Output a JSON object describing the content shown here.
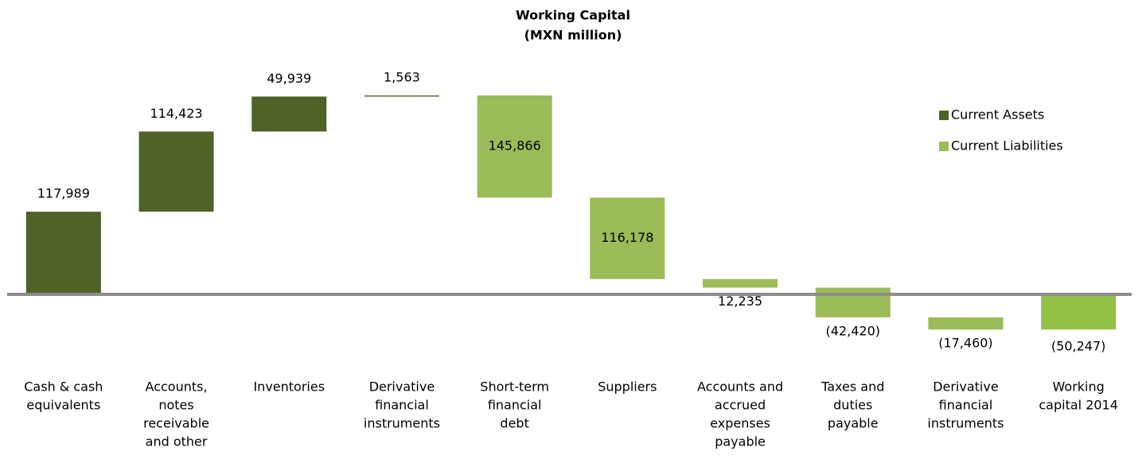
{
  "chart_data": {
    "type": "waterfall",
    "title": [
      "Working Capital",
      "(MXN million)"
    ],
    "categories": [
      [
        "Cash & cash",
        "equivalents"
      ],
      [
        "Accounts,",
        "notes",
        "receivable",
        "and other"
      ],
      [
        "Inventories"
      ],
      [
        "Derivative",
        "financial",
        "instruments"
      ],
      [
        "Short-term",
        "financial",
        "debt"
      ],
      [
        "Suppliers"
      ],
      [
        "Accounts and",
        "accrued",
        "expenses",
        "payable"
      ],
      [
        "Taxes and",
        "duties",
        "payable"
      ],
      [
        "Derivative",
        "financial",
        "instruments"
      ],
      [
        "Working",
        "capital 2014"
      ]
    ],
    "series": [
      {
        "name": "Current Assets",
        "color": "#4f6228",
        "values": [
          117989,
          114423,
          49939,
          1563,
          null,
          null,
          null,
          null,
          null,
          null
        ],
        "value_labels": [
          "117,989",
          "114,423",
          "49,939",
          "1,563",
          null,
          null,
          null,
          null,
          null,
          null
        ]
      },
      {
        "name": "Current Liabilities",
        "color": "#9bbb59",
        "values": [
          null,
          null,
          null,
          null,
          -145866,
          -116178,
          -12235,
          -42420,
          -17460,
          null
        ],
        "value_labels": [
          null,
          null,
          null,
          null,
          "145,866",
          "116,178",
          "12,235",
          "(42,420)",
          "(17,460)",
          null
        ]
      }
    ],
    "total": {
      "values": [
        null,
        null,
        null,
        null,
        null,
        null,
        null,
        null,
        null,
        -50247
      ],
      "value_labels": [
        null,
        null,
        null,
        null,
        null,
        null,
        null,
        null,
        null,
        "(50,247)"
      ],
      "color": "#92c047"
    },
    "legend": "right"
  }
}
